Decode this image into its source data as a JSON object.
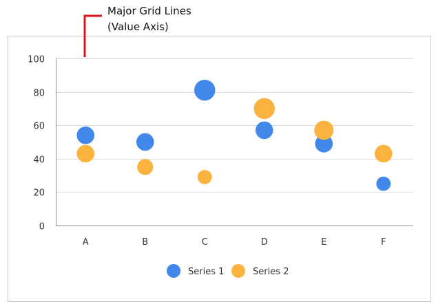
{
  "annotation": {
    "lines": [
      "Major Grid Lines",
      "(Value Axis)"
    ],
    "color": "#e0101a"
  },
  "chart_data": {
    "type": "scatter",
    "categories": [
      "A",
      "B",
      "C",
      "D",
      "E",
      "F"
    ],
    "ylim": [
      0,
      100
    ],
    "yticks": [
      0,
      20,
      40,
      60,
      80,
      100
    ],
    "grid": true,
    "legend_position": "bottom",
    "series": [
      {
        "name": "Series 1",
        "color": "#4287ea",
        "values": [
          54,
          50,
          81,
          57,
          49,
          25
        ],
        "sizes": [
          4,
          4,
          6,
          4,
          4,
          2
        ]
      },
      {
        "name": "Series 2",
        "color": "#fbb23f",
        "values": [
          43,
          35,
          29,
          70,
          57,
          43
        ],
        "sizes": [
          4,
          3,
          2,
          6,
          5,
          4
        ]
      }
    ]
  }
}
